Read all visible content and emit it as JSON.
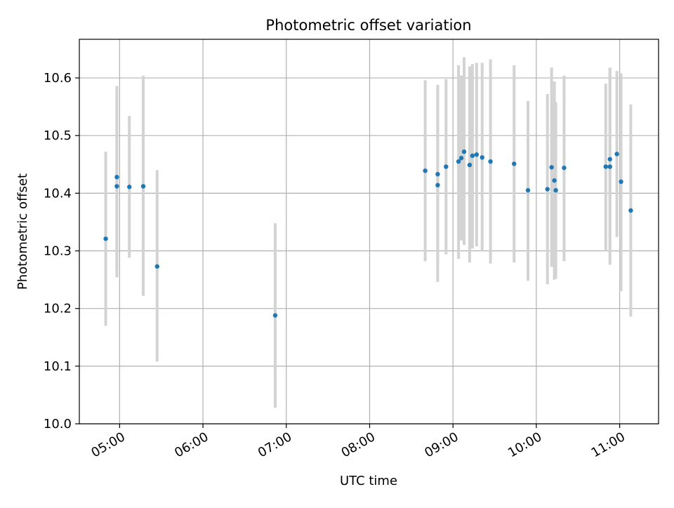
{
  "chart_data": {
    "type": "scatter",
    "title": "Photometric offset variation",
    "xlabel": "UTC time",
    "ylabel": "Photometric offset",
    "xlim": [
      "04:31",
      "11:28"
    ],
    "ylim": [
      10.0,
      10.667
    ],
    "grid": true,
    "x_ticks": [
      "05:00",
      "06:00",
      "07:00",
      "08:00",
      "09:00",
      "10:00",
      "11:00"
    ],
    "y_ticks": [
      10.0,
      10.1,
      10.2,
      10.3,
      10.4,
      10.5,
      10.6
    ],
    "y_tick_labels": [
      "10.0",
      "10.1",
      "10.2",
      "10.3",
      "10.4",
      "10.5",
      "10.6"
    ],
    "colors": {
      "point": "#1f77b4",
      "errorbar": "#d3d3d3",
      "grid": "#b0b0b0"
    },
    "points": [
      {
        "t": "04:50",
        "y": 10.321,
        "lo": 10.17,
        "hi": 10.472
      },
      {
        "t": "04:58",
        "y": 10.428,
        "lo": 10.27,
        "hi": 10.586
      },
      {
        "t": "04:58",
        "y": 10.412,
        "lo": 10.254,
        "hi": 10.57
      },
      {
        "t": "05:07",
        "y": 10.411,
        "lo": 10.288,
        "hi": 10.534
      },
      {
        "t": "05:17",
        "y": 10.412,
        "lo": 10.222,
        "hi": 10.604
      },
      {
        "t": "05:27",
        "y": 10.273,
        "lo": 10.108,
        "hi": 10.44
      },
      {
        "t": "06:52",
        "y": 10.188,
        "lo": 10.028,
        "hi": 10.348
      },
      {
        "t": "08:40",
        "y": 10.439,
        "lo": 10.282,
        "hi": 10.596
      },
      {
        "t": "08:49",
        "y": 10.433,
        "lo": 10.278,
        "hi": 10.588
      },
      {
        "t": "08:49",
        "y": 10.414,
        "lo": 10.246,
        "hi": 10.582
      },
      {
        "t": "08:55",
        "y": 10.446,
        "lo": 10.294,
        "hi": 10.598
      },
      {
        "t": "09:04",
        "y": 10.455,
        "lo": 10.286,
        "hi": 10.622
      },
      {
        "t": "09:06",
        "y": 10.461,
        "lo": 10.318,
        "hi": 10.604
      },
      {
        "t": "09:08",
        "y": 10.472,
        "lo": 10.31,
        "hi": 10.636
      },
      {
        "t": "09:12",
        "y": 10.449,
        "lo": 10.28,
        "hi": 10.62
      },
      {
        "t": "09:14",
        "y": 10.465,
        "lo": 10.304,
        "hi": 10.624
      },
      {
        "t": "09:17",
        "y": 10.467,
        "lo": 10.308,
        "hi": 10.626
      },
      {
        "t": "09:21",
        "y": 10.462,
        "lo": 10.3,
        "hi": 10.626
      },
      {
        "t": "09:27",
        "y": 10.455,
        "lo": 10.278,
        "hi": 10.632
      },
      {
        "t": "09:44",
        "y": 10.451,
        "lo": 10.28,
        "hi": 10.622
      },
      {
        "t": "09:54",
        "y": 10.405,
        "lo": 10.248,
        "hi": 10.56
      },
      {
        "t": "10:08",
        "y": 10.407,
        "lo": 10.242,
        "hi": 10.572
      },
      {
        "t": "10:11",
        "y": 10.445,
        "lo": 10.272,
        "hi": 10.618
      },
      {
        "t": "10:13",
        "y": 10.422,
        "lo": 10.25,
        "hi": 10.594
      },
      {
        "t": "10:14",
        "y": 10.405,
        "lo": 10.252,
        "hi": 10.558
      },
      {
        "t": "10:20",
        "y": 10.444,
        "lo": 10.282,
        "hi": 10.604
      },
      {
        "t": "10:50",
        "y": 10.446,
        "lo": 10.3,
        "hi": 10.59
      },
      {
        "t": "10:53",
        "y": 10.459,
        "lo": 10.296,
        "hi": 10.618
      },
      {
        "t": "10:53",
        "y": 10.446,
        "lo": 10.276,
        "hi": 10.616
      },
      {
        "t": "10:58",
        "y": 10.468,
        "lo": 10.324,
        "hi": 10.612
      },
      {
        "t": "11:01",
        "y": 10.42,
        "lo": 10.23,
        "hi": 10.608
      },
      {
        "t": "11:08",
        "y": 10.37,
        "lo": 10.186,
        "hi": 10.554
      }
    ]
  }
}
